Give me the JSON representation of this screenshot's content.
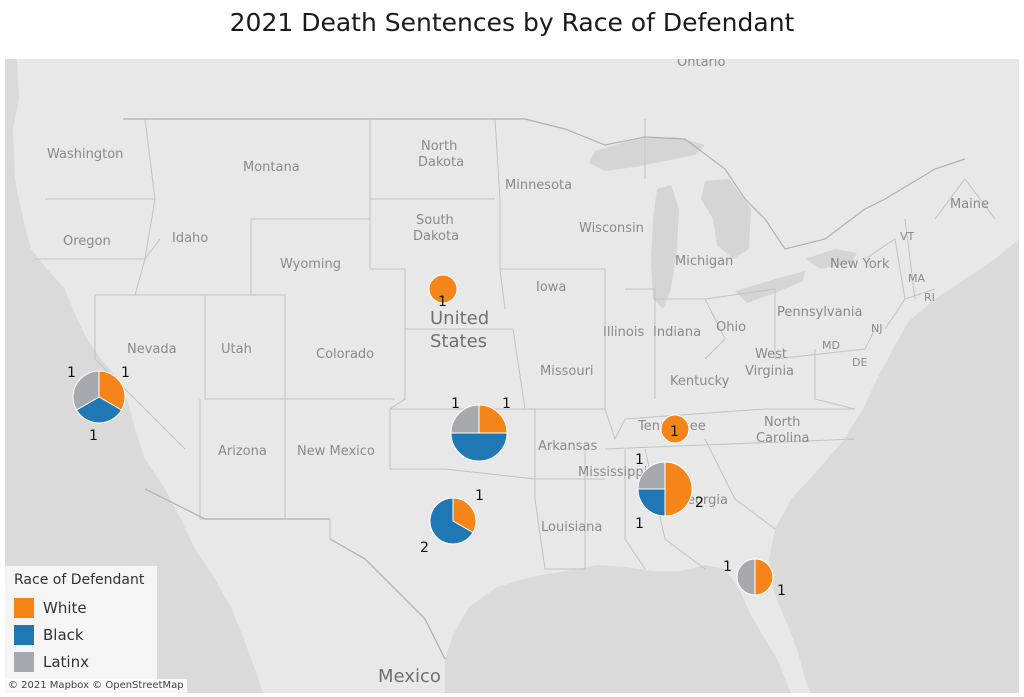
{
  "title": "2021 Death Sentences by Race of Defendant",
  "colors": {
    "White": "#f58518",
    "Black": "#1f77b4",
    "Latinx": "#a6a9ad",
    "land": "#e8e8e8",
    "water": "#d8d8d8",
    "border": "#c4c4c4"
  },
  "places": {
    "ontario": "Ontario",
    "washington": "Washington",
    "oregon": "Oregon",
    "idaho": "Idaho",
    "montana": "Montana",
    "wyoming": "Wyoming",
    "nevada": "Nevada",
    "utah": "Utah",
    "colorado": "Colorado",
    "arizona": "Arizona",
    "new_mexico": "New Mexico",
    "north_dakota_1": "North",
    "north_dakota_2": "Dakota",
    "south_dakota_1": "South",
    "south_dakota_2": "Dakota",
    "minnesota": "Minnesota",
    "iowa": "Iowa",
    "wisconsin": "Wisconsin",
    "michigan": "Michigan",
    "illinois": "Illinois",
    "indiana": "Indiana",
    "ohio": "Ohio",
    "missouri": "Missouri",
    "kentucky": "Kentucky",
    "arkansas": "Arkansas",
    "tennessee": "Tennessee",
    "mississippi": "Mississippi",
    "louisiana": "Louisiana",
    "georgia": "Georgia",
    "north_carolina_1": "North",
    "north_carolina_2": "Carolina",
    "west_virginia_1": "West",
    "west_virginia_2": "Virginia",
    "pennsylvania": "Pennsylvania",
    "new_york": "New York",
    "maine": "Maine",
    "vt": "VT",
    "ma": "MA",
    "ri": "RI",
    "nj": "NJ",
    "md": "MD",
    "de": "DE",
    "united_states_1": "United",
    "united_states_2": "States",
    "mexico": "Mexico"
  },
  "chart_data": {
    "type": "pie",
    "title": "2021 Death Sentences by Race of Defendant",
    "legend": {
      "title": "Race of Defendant",
      "position": "bottom-left",
      "categories": [
        "White",
        "Black",
        "Latinx"
      ]
    },
    "pies": [
      {
        "location": "Nebraska",
        "values": {
          "White": 1,
          "Black": 0,
          "Latinx": 0
        }
      },
      {
        "location": "California",
        "values": {
          "White": 1,
          "Black": 1,
          "Latinx": 1
        }
      },
      {
        "location": "Oklahoma",
        "values": {
          "White": 1,
          "Black": 2,
          "Latinx": 1
        }
      },
      {
        "location": "Tennessee",
        "values": {
          "White": 1,
          "Black": 0,
          "Latinx": 0
        }
      },
      {
        "location": "Texas",
        "values": {
          "White": 1,
          "Black": 2,
          "Latinx": 0
        }
      },
      {
        "location": "Alabama",
        "values": {
          "White": 2,
          "Black": 1,
          "Latinx": 1
        }
      },
      {
        "location": "Florida",
        "values": {
          "White": 1,
          "Black": 0,
          "Latinx": 1
        }
      }
    ]
  },
  "attribution": "© 2021 Mapbox © OpenStreetMap"
}
